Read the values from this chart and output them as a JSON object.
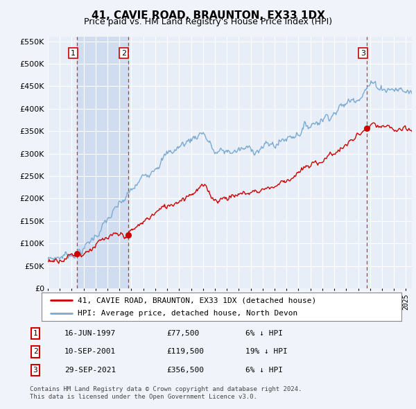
{
  "title": "41, CAVIE ROAD, BRAUNTON, EX33 1DX",
  "subtitle": "Price paid vs. HM Land Registry's House Price Index (HPI)",
  "transactions": [
    {
      "label": "1",
      "date_str": "16-JUN-1997",
      "price": 77500,
      "year": 1997.46,
      "pct": "6%",
      "dir": "↓"
    },
    {
      "label": "2",
      "date_str": "10-SEP-2001",
      "price": 119500,
      "year": 2001.71,
      "pct": "19%",
      "dir": "↓"
    },
    {
      "label": "3",
      "date_str": "29-SEP-2021",
      "price": 356500,
      "year": 2021.75,
      "pct": "6%",
      "dir": "↓"
    }
  ],
  "legend_line1": "41, CAVIE ROAD, BRAUNTON, EX33 1DX (detached house)",
  "legend_line2": "HPI: Average price, detached house, North Devon",
  "footer1": "Contains HM Land Registry data © Crown copyright and database right 2024.",
  "footer2": "This data is licensed under the Open Government Licence v3.0.",
  "ylim": [
    0,
    560000
  ],
  "xlim_start": 1995.0,
  "xlim_end": 2025.5,
  "bg_color": "#f0f4fa",
  "plot_bg_color": "#e8eef8",
  "shade_color": "#d0dcf0",
  "red_color": "#cc0000",
  "blue_color": "#7aaad0",
  "grid_color": "#ffffff",
  "shade_between_1_and_2": true
}
